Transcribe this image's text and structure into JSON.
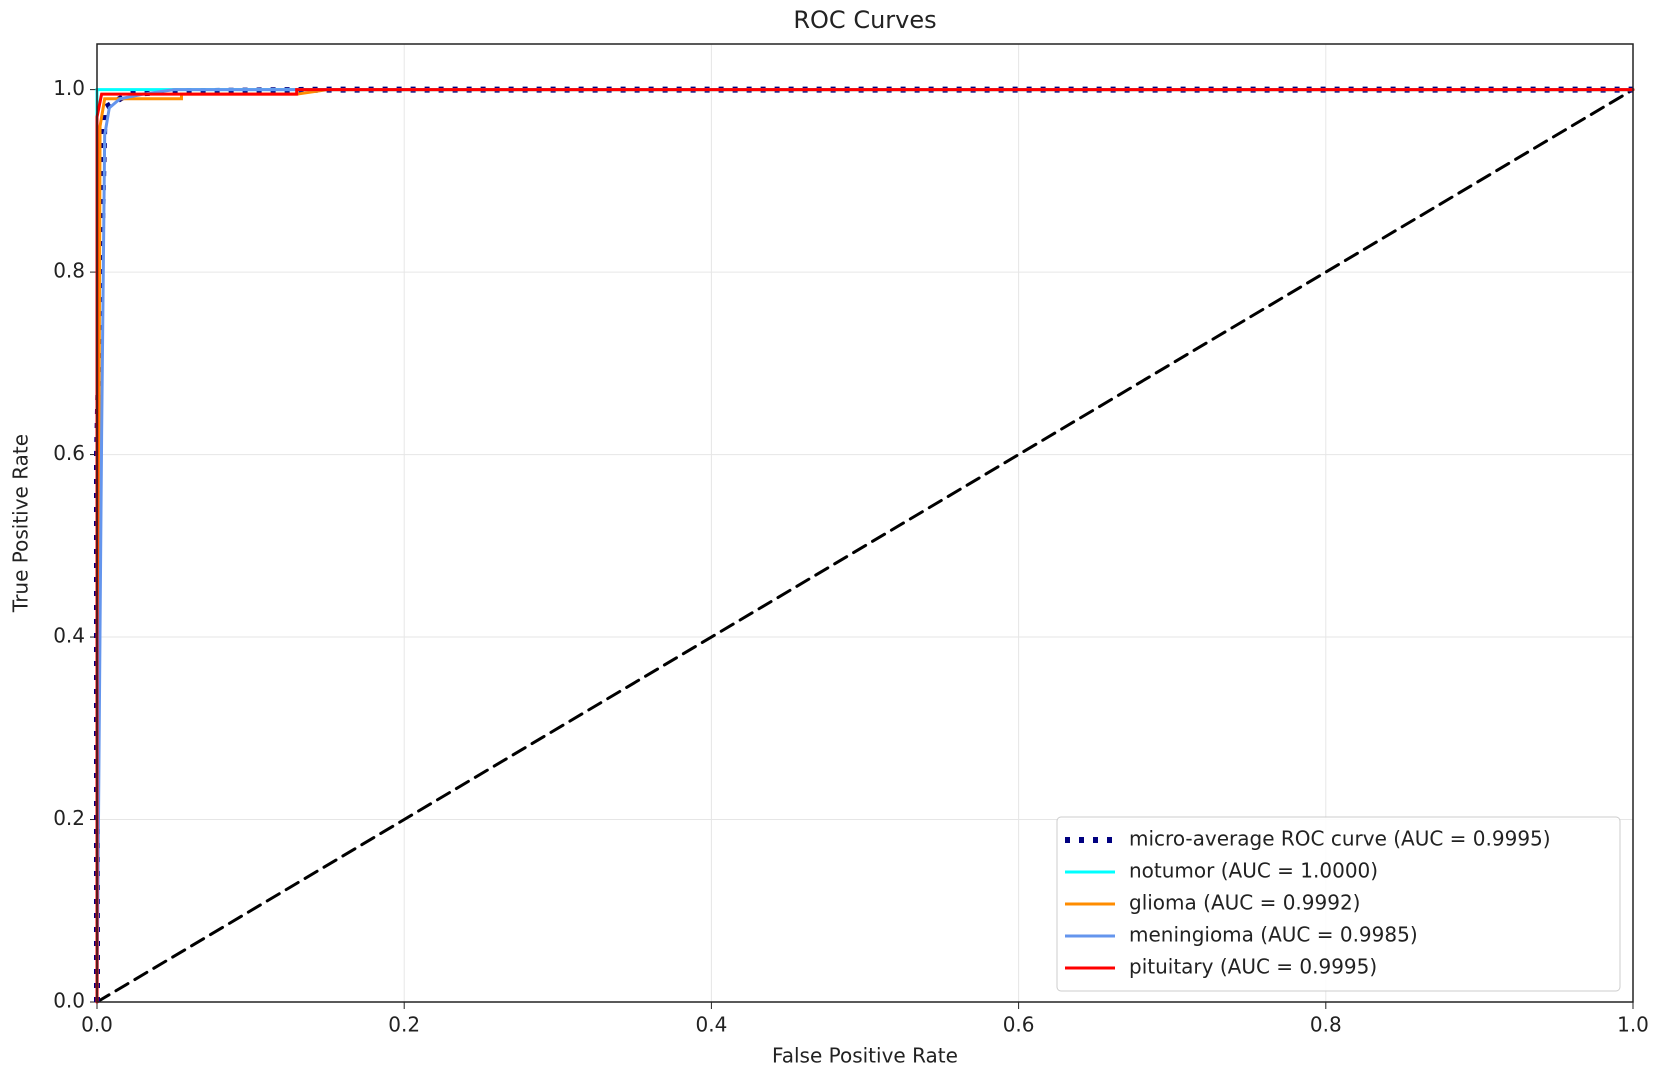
{
  "chart_data": {
    "type": "line",
    "title": "ROC Curves",
    "xlabel": "False Positive Rate",
    "ylabel": "True Positive Rate",
    "xlim": [
      0,
      1
    ],
    "ylim": [
      0,
      1.05
    ],
    "xticks": [
      {
        "value": 0,
        "label": "0.0"
      },
      0.2,
      0.4,
      0.6,
      0.8,
      {
        "value": 1,
        "label": "1.0"
      }
    ],
    "yticks": [
      {
        "value": 0,
        "label": "0.0"
      },
      0.2,
      0.4,
      0.6,
      0.8,
      {
        "value": 1,
        "label": "1.0"
      }
    ],
    "grid": true,
    "legend": "lower right",
    "series": [
      {
        "name": "micro-average ROC curve (AUC = 0.9995)",
        "color": "#000080",
        "style": "dotted",
        "x": [
          0,
          0,
          0.005,
          0.02,
          0.05,
          0.15,
          1
        ],
        "values": [
          0,
          0.6,
          0.98,
          0.995,
          0.998,
          1,
          1
        ]
      },
      {
        "name": "notumor (AUC = 1.0000)",
        "color": "#00ffff",
        "style": "solid",
        "x": [
          0,
          0,
          1
        ],
        "values": [
          0,
          1,
          1
        ]
      },
      {
        "name": "glioma (AUC = 0.9992)",
        "color": "#ff8c00",
        "style": "solid",
        "x": [
          0,
          0.002,
          0.005,
          0.055,
          0.055,
          0.13,
          0.15,
          1
        ],
        "values": [
          0,
          0.96,
          0.99,
          0.99,
          0.995,
          0.995,
          1,
          1
        ]
      },
      {
        "name": "meningioma (AUC = 0.9985)",
        "color": "#6495ed",
        "style": "solid",
        "x": [
          0,
          0.003,
          0.005,
          0.008,
          0.015,
          0.03,
          0.05,
          1
        ],
        "values": [
          0,
          0.62,
          0.95,
          0.98,
          0.99,
          0.995,
          1,
          1
        ]
      },
      {
        "name": "pituitary (AUC = 0.9995)",
        "color": "#ff0000",
        "style": "solid",
        "x": [
          0,
          0,
          0.003,
          0.13,
          0.13,
          1
        ],
        "values": [
          0,
          0.97,
          0.995,
          0.995,
          1,
          1
        ]
      }
    ],
    "reference": {
      "color": "#000000",
      "style": "dashed",
      "x": [
        0,
        1
      ],
      "values": [
        0,
        1
      ]
    }
  }
}
